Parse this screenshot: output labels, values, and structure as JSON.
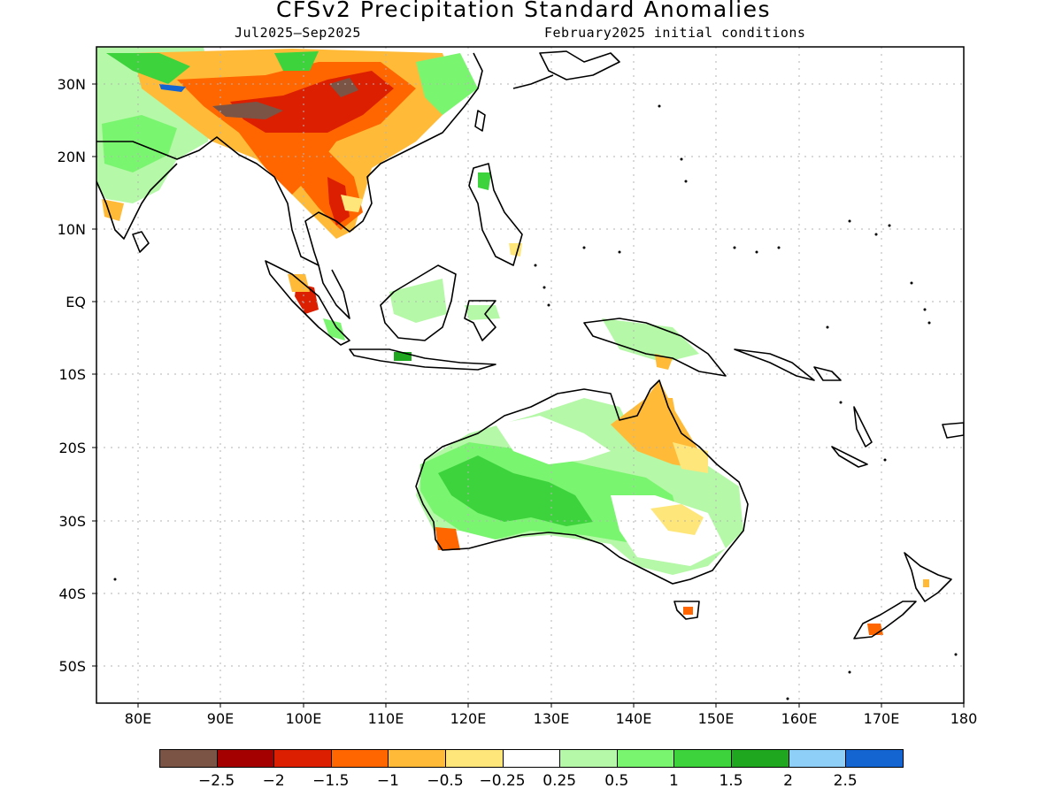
{
  "title": "CFSv2 Precipitation Standard Anomalies",
  "period": "Jul2025–Sep2025",
  "initial_conditions": "February2025 initial conditions",
  "lat_labels": [
    "30N",
    "20N",
    "10N",
    "EQ",
    "10S",
    "20S",
    "30S",
    "40S",
    "50S"
  ],
  "lon_labels": [
    "80E",
    "90E",
    "100E",
    "110E",
    "120E",
    "130E",
    "140E",
    "150E",
    "160E",
    "170E",
    "180"
  ],
  "colorbar": {
    "colors": [
      "#7b5446",
      "#a50000",
      "#dc1f00",
      "#ff6600",
      "#ffbb38",
      "#ffe67a",
      "#ffffff",
      "#b5f8a7",
      "#7af56f",
      "#3cd33c",
      "#1fa81f",
      "#8ecff8",
      "#1464d2"
    ],
    "labels": [
      "−2.5",
      "−2",
      "−1.5",
      "−1",
      "−0.5",
      "−0.25",
      "0.25",
      "0.5",
      "1",
      "1.5",
      "2",
      "2.5"
    ]
  },
  "map_colors": {
    "brown": "#7b5446",
    "darkred": "#a50000",
    "red": "#dc1f00",
    "orange": "#ff6600",
    "ltorange": "#ffbb38",
    "yellow": "#ffe67a",
    "ltgreen": "#b5f8a7",
    "green": "#7af56f",
    "midgreen": "#3cd33c",
    "dkgreen": "#1fa81f",
    "ltblue": "#8ecff8",
    "blue": "#1464d2"
  }
}
